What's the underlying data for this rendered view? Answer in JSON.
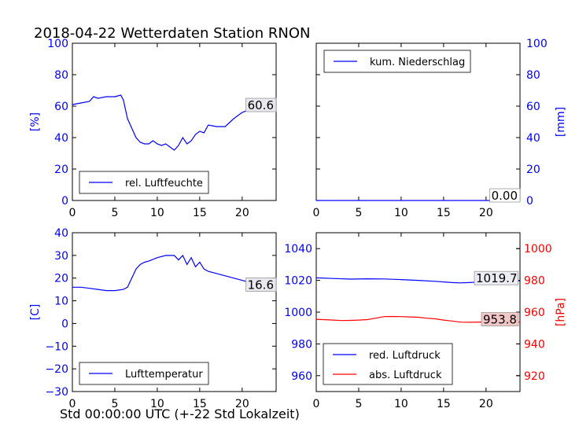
{
  "figure": {
    "title": "2018-04-22 Wetterdaten Station RNON",
    "xlabel": "Std 00:00:00 UTC (+-22 Std Lokalzeit)"
  },
  "colors": {
    "blue": "#0000ff",
    "red": "#ff0000",
    "black": "#000000"
  },
  "chart_data": [
    {
      "panel": "top-left",
      "type": "line",
      "title": "",
      "xlabel": "",
      "ylabel": "[%]",
      "xlim": [
        0,
        24
      ],
      "ylim": [
        0,
        100
      ],
      "xticks": [
        "0",
        "5",
        "10",
        "15",
        "20"
      ],
      "yticks": [
        "0",
        "20",
        "40",
        "60",
        "80",
        "100"
      ],
      "legend": {
        "position": "lower-left",
        "entries": [
          "rel. Luftfeuchte"
        ]
      },
      "last_value_label": "60.6",
      "series": [
        {
          "name": "rel. Luftfeuchte",
          "color": "#0000ff",
          "x": [
            0,
            1,
            2,
            2.5,
            3,
            4,
            5,
            5.7,
            6,
            6.5,
            7,
            7.5,
            8,
            8.5,
            9,
            9.5,
            10,
            10.5,
            11,
            11.5,
            12,
            12.5,
            13,
            13.5,
            14,
            14.5,
            15,
            15.5,
            16,
            17,
            18,
            19,
            20,
            21,
            22,
            23,
            24
          ],
          "y": [
            61,
            62,
            63,
            66,
            65,
            66,
            66,
            67,
            64,
            52,
            46,
            40,
            37,
            36,
            36,
            38,
            36,
            35,
            36,
            34,
            32,
            35,
            40,
            36,
            38,
            42,
            44,
            43,
            48,
            47,
            47,
            52,
            56,
            58,
            60,
            59,
            60
          ]
        }
      ]
    },
    {
      "panel": "top-right",
      "type": "line",
      "title": "",
      "xlabel": "",
      "ylabel": "[mm]",
      "xlim": [
        0,
        24
      ],
      "ylim": [
        0,
        100
      ],
      "xticks": [
        "0",
        "5",
        "10",
        "15",
        "20"
      ],
      "yticks": [
        "0",
        "20",
        "40",
        "60",
        "80",
        "100"
      ],
      "y_axis_side": "right",
      "legend": {
        "position": "top-left",
        "entries": [
          "kum. Niederschlag"
        ]
      },
      "last_value_label": "0.00",
      "series": [
        {
          "name": "kum. Niederschlag",
          "color": "#0000ff",
          "x": [
            0,
            24
          ],
          "y": [
            0,
            0
          ]
        }
      ]
    },
    {
      "panel": "bottom-left",
      "type": "line",
      "title": "",
      "xlabel": "",
      "ylabel": "[C]",
      "xlim": [
        0,
        24
      ],
      "ylim": [
        -30,
        40
      ],
      "xticks": [
        "0",
        "5",
        "10",
        "15",
        "20"
      ],
      "yticks": [
        "−30",
        "−20",
        "−10",
        "0",
        "10",
        "20",
        "30",
        "40"
      ],
      "legend": {
        "position": "lower-left",
        "entries": [
          "Lufttemperatur"
        ]
      },
      "last_value_label": "16.6",
      "series": [
        {
          "name": "Lufttemperatur",
          "color": "#0000ff",
          "x": [
            0,
            1,
            2,
            3,
            4,
            5,
            6,
            6.5,
            7,
            7.5,
            8,
            8.5,
            9,
            10,
            11,
            12,
            12.5,
            13,
            13.5,
            14,
            14.5,
            15,
            15.5,
            16,
            17,
            18,
            19,
            20,
            21,
            22,
            23,
            24
          ],
          "y": [
            16,
            16,
            15.5,
            15,
            14.5,
            14.5,
            15,
            16,
            20,
            24,
            26,
            27,
            27.5,
            29,
            30,
            30,
            28,
            30,
            26,
            29,
            25,
            27,
            24,
            23,
            22,
            21,
            20,
            19,
            18,
            17.5,
            16.8,
            16.6
          ]
        }
      ]
    },
    {
      "panel": "bottom-right",
      "type": "line",
      "title": "",
      "xlabel": "",
      "ylabel": "[hPa]",
      "xlim": [
        0,
        24
      ],
      "ylim": [
        950,
        1050
      ],
      "ylim_right": [
        910,
        1010
      ],
      "xticks": [
        "0",
        "5",
        "10",
        "15",
        "20"
      ],
      "yticks": [
        "960",
        "980",
        "1000",
        "1020",
        "1040"
      ],
      "yticks_right": [
        "920",
        "940",
        "960",
        "980",
        "1000"
      ],
      "legend": {
        "position": "lower-left",
        "entries": [
          "red. Luftdruck",
          "abs. Luftdruck"
        ]
      },
      "last_value_labels": [
        "1019.7",
        "953.8"
      ],
      "series": [
        {
          "name": "red. Luftdruck",
          "color": "#0000ff",
          "axis": "left",
          "x": [
            0,
            2,
            4,
            6,
            8,
            10,
            12,
            14,
            16,
            17,
            18,
            19,
            20,
            22,
            24
          ],
          "y": [
            1021.6,
            1021.2,
            1020.8,
            1021.0,
            1020.9,
            1020.5,
            1020.0,
            1019.4,
            1018.6,
            1018.4,
            1018.6,
            1018.9,
            1019.2,
            1019.5,
            1019.7
          ]
        },
        {
          "name": "abs. Luftdruck",
          "color": "#ff0000",
          "axis": "right",
          "x": [
            0,
            2,
            3,
            4,
            5,
            6,
            7,
            8,
            9,
            10,
            11,
            12,
            13,
            14,
            15,
            16,
            17,
            18,
            20,
            22,
            24
          ],
          "y": [
            955.5,
            955.0,
            954.7,
            954.8,
            955.0,
            955.3,
            956.2,
            957.2,
            957.3,
            957.2,
            957.0,
            956.8,
            956.2,
            955.8,
            955.0,
            954.4,
            953.7,
            953.6,
            953.8,
            953.9,
            953.8
          ]
        }
      ]
    }
  ]
}
